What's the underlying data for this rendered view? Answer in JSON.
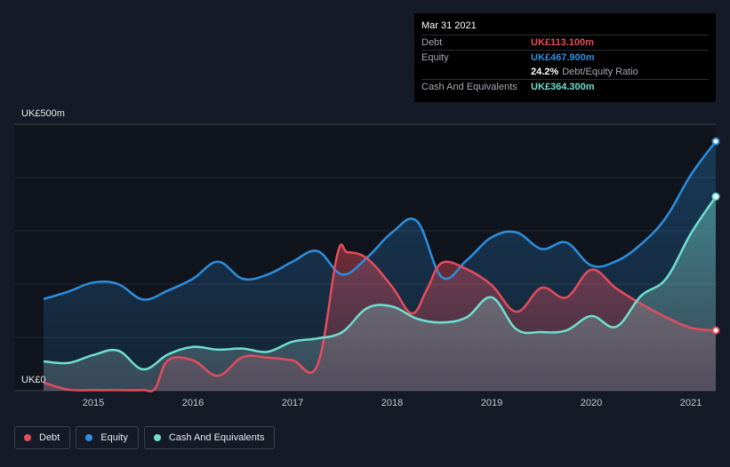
{
  "tooltip": {
    "date": "Mar 31 2021",
    "debt_label": "Debt",
    "debt_value": "UK£113.100m",
    "equity_label": "Equity",
    "equity_value": "UK£467.900m",
    "ratio_value": "24.2%",
    "ratio_label": "Debt/Equity Ratio",
    "cash_label": "Cash And Equivalents",
    "cash_value": "UK£364.300m"
  },
  "legend": {
    "debt": "Debt",
    "equity": "Equity",
    "cash": "Cash And Equivalents"
  },
  "colors": {
    "background": "#151b26",
    "debt": "#e64d5c",
    "equity": "#2d8fe0",
    "cash": "#6fe0cf"
  },
  "chart_data": {
    "type": "area",
    "ylim": [
      0,
      500
    ],
    "y_tick_labels": [
      "UK£0",
      "UK£500m"
    ],
    "x_ticks": [
      2015,
      2016,
      2017,
      2018,
      2019,
      2020,
      2021
    ],
    "series": [
      {
        "name": "Debt",
        "points": [
          [
            2014.5,
            15
          ],
          [
            2014.75,
            2
          ],
          [
            2015,
            1
          ],
          [
            2015.25,
            1
          ],
          [
            2015.5,
            1
          ],
          [
            2015.62,
            4
          ],
          [
            2015.75,
            57
          ],
          [
            2016,
            57
          ],
          [
            2016.25,
            28
          ],
          [
            2016.5,
            63
          ],
          [
            2016.75,
            62
          ],
          [
            2017,
            57
          ],
          [
            2017.25,
            48
          ],
          [
            2017.45,
            256
          ],
          [
            2017.55,
            260
          ],
          [
            2017.75,
            248
          ],
          [
            2018,
            195
          ],
          [
            2018.2,
            145
          ],
          [
            2018.35,
            190
          ],
          [
            2018.5,
            240
          ],
          [
            2018.75,
            228
          ],
          [
            2019,
            198
          ],
          [
            2019.25,
            148
          ],
          [
            2019.5,
            193
          ],
          [
            2019.75,
            175
          ],
          [
            2020,
            227
          ],
          [
            2020.25,
            192
          ],
          [
            2020.5,
            163
          ],
          [
            2020.75,
            138
          ],
          [
            2021,
            118
          ],
          [
            2021.25,
            113.1
          ]
        ]
      },
      {
        "name": "Equity",
        "points": [
          [
            2014.5,
            172
          ],
          [
            2014.75,
            186
          ],
          [
            2015,
            203
          ],
          [
            2015.25,
            200
          ],
          [
            2015.5,
            171
          ],
          [
            2015.75,
            188
          ],
          [
            2016,
            210
          ],
          [
            2016.25,
            242
          ],
          [
            2016.5,
            210
          ],
          [
            2016.75,
            218
          ],
          [
            2017,
            242
          ],
          [
            2017.25,
            262
          ],
          [
            2017.5,
            218
          ],
          [
            2017.75,
            250
          ],
          [
            2018,
            297
          ],
          [
            2018.25,
            318
          ],
          [
            2018.5,
            213
          ],
          [
            2018.75,
            245
          ],
          [
            2019,
            288
          ],
          [
            2019.25,
            297
          ],
          [
            2019.5,
            266
          ],
          [
            2019.75,
            278
          ],
          [
            2020,
            235
          ],
          [
            2020.25,
            243
          ],
          [
            2020.5,
            275
          ],
          [
            2020.75,
            325
          ],
          [
            2021,
            405
          ],
          [
            2021.25,
            467.9
          ]
        ]
      },
      {
        "name": "Cash And Equivalents",
        "points": [
          [
            2014.5,
            55
          ],
          [
            2014.75,
            52
          ],
          [
            2015,
            67
          ],
          [
            2015.25,
            75
          ],
          [
            2015.5,
            40
          ],
          [
            2015.75,
            68
          ],
          [
            2016,
            82
          ],
          [
            2016.25,
            77
          ],
          [
            2016.5,
            79
          ],
          [
            2016.75,
            73
          ],
          [
            2017,
            92
          ],
          [
            2017.25,
            98
          ],
          [
            2017.5,
            110
          ],
          [
            2017.75,
            155
          ],
          [
            2018,
            158
          ],
          [
            2018.25,
            135
          ],
          [
            2018.5,
            128
          ],
          [
            2018.75,
            138
          ],
          [
            2019,
            175
          ],
          [
            2019.25,
            115
          ],
          [
            2019.5,
            110
          ],
          [
            2019.75,
            113
          ],
          [
            2020,
            140
          ],
          [
            2020.25,
            120
          ],
          [
            2020.5,
            178
          ],
          [
            2020.75,
            210
          ],
          [
            2021,
            295
          ],
          [
            2021.25,
            364.3
          ]
        ]
      }
    ]
  }
}
